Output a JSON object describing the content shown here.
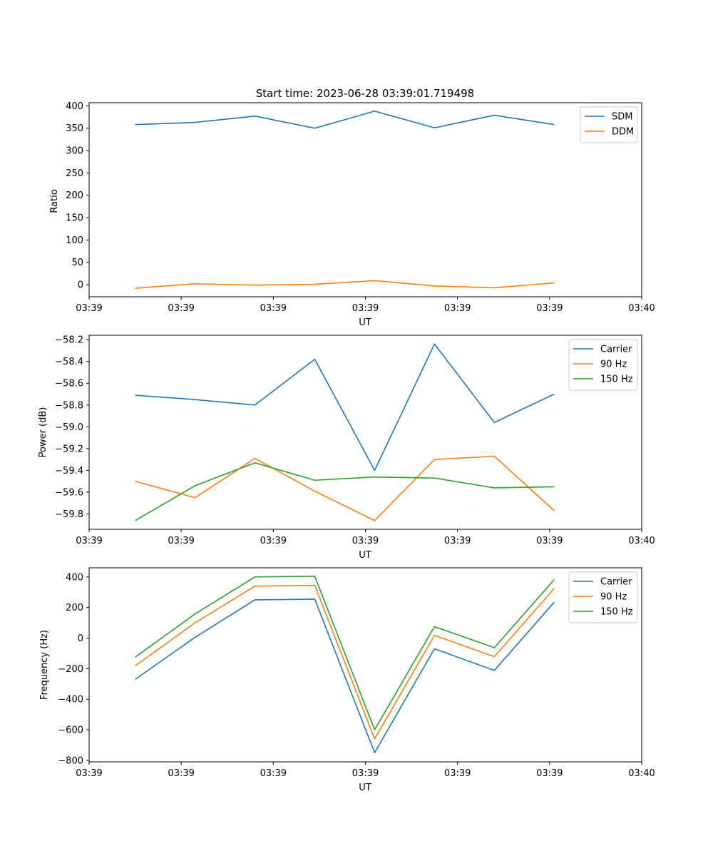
{
  "chart_data": [
    {
      "type": "line",
      "title": "Start time: 2023-06-28 03:39:01.719498",
      "xlabel": "UT",
      "ylabel": "Ratio",
      "x": [
        0.5,
        1.15,
        1.8,
        2.45,
        3.1,
        3.75,
        4.4,
        5.05
      ],
      "xlim": [
        0,
        6
      ],
      "x_tick_values": [
        0,
        1,
        2,
        3,
        4,
        5,
        6
      ],
      "x_tick_labels": [
        "03:39",
        "03:39",
        "03:39",
        "03:39",
        "03:39",
        "03:39",
        "03:40"
      ],
      "ylim": [
        -27,
        407
      ],
      "y_ticks": [
        0,
        50,
        100,
        150,
        200,
        250,
        300,
        350,
        400
      ],
      "legend_position": "top-right",
      "series": [
        {
          "name": "SDM",
          "color": "#1f77b4",
          "values": [
            358,
            363,
            377,
            350,
            388,
            351,
            379,
            358
          ]
        },
        {
          "name": "DDM",
          "color": "#ff7f0e",
          "values": [
            -8,
            2,
            -1,
            1,
            9,
            -3,
            -7,
            4
          ]
        }
      ]
    },
    {
      "type": "line",
      "title": "",
      "xlabel": "UT",
      "ylabel": "Power (dB)",
      "x": [
        0.5,
        1.15,
        1.8,
        2.45,
        3.1,
        3.75,
        4.4,
        5.05
      ],
      "xlim": [
        0,
        6
      ],
      "x_tick_values": [
        0,
        1,
        2,
        3,
        4,
        5,
        6
      ],
      "x_tick_labels": [
        "03:39",
        "03:39",
        "03:39",
        "03:39",
        "03:39",
        "03:39",
        "03:40"
      ],
      "ylim": [
        -59.94,
        -58.16
      ],
      "y_ticks": [
        -59.8,
        -59.6,
        -59.4,
        -59.2,
        -59.0,
        -58.8,
        -58.6,
        -58.4,
        -58.2
      ],
      "y_tick_labels": [
        "−59.8",
        "−59.6",
        "−59.4",
        "−59.2",
        "−59.0",
        "−58.8",
        "−58.6",
        "−58.4",
        "−58.2"
      ],
      "legend_position": "top-right",
      "series": [
        {
          "name": "Carrier",
          "color": "#1f77b4",
          "values": [
            -58.71,
            -58.75,
            -58.8,
            -58.38,
            -59.4,
            -58.24,
            -58.96,
            -58.7
          ]
        },
        {
          "name": "90 Hz",
          "color": "#ff7f0e",
          "values": [
            -59.5,
            -59.65,
            -59.29,
            -59.59,
            -59.86,
            -59.3,
            -59.27,
            -59.77
          ]
        },
        {
          "name": "150 Hz",
          "color": "#2ca02c",
          "values": [
            -59.86,
            -59.54,
            -59.33,
            -59.49,
            -59.46,
            -59.47,
            -59.56,
            -59.55
          ]
        }
      ]
    },
    {
      "type": "line",
      "title": "",
      "xlabel": "UT",
      "ylabel": "Frequency (Hz)",
      "x": [
        0.5,
        1.15,
        1.8,
        2.45,
        3.1,
        3.75,
        4.4,
        5.05
      ],
      "xlim": [
        0,
        6
      ],
      "x_tick_values": [
        0,
        1,
        2,
        3,
        4,
        5,
        6
      ],
      "x_tick_labels": [
        "03:39",
        "03:39",
        "03:39",
        "03:39",
        "03:39",
        "03:39",
        "03:40"
      ],
      "ylim": [
        -810,
        460
      ],
      "y_ticks": [
        -800,
        -600,
        -400,
        -200,
        0,
        200,
        400
      ],
      "y_tick_labels": [
        "−800",
        "−600",
        "−400",
        "−200",
        "0",
        "200",
        "400"
      ],
      "legend_position": "top-right",
      "series": [
        {
          "name": "Carrier",
          "color": "#1f77b4",
          "values": [
            -270,
            5,
            250,
            255,
            -750,
            -70,
            -212,
            235
          ]
        },
        {
          "name": "90 Hz",
          "color": "#ff7f0e",
          "values": [
            -182,
            100,
            340,
            345,
            -660,
            18,
            -122,
            325
          ]
        },
        {
          "name": "150 Hz",
          "color": "#2ca02c",
          "values": [
            -125,
            158,
            400,
            405,
            -600,
            75,
            -63,
            383
          ]
        }
      ]
    }
  ]
}
